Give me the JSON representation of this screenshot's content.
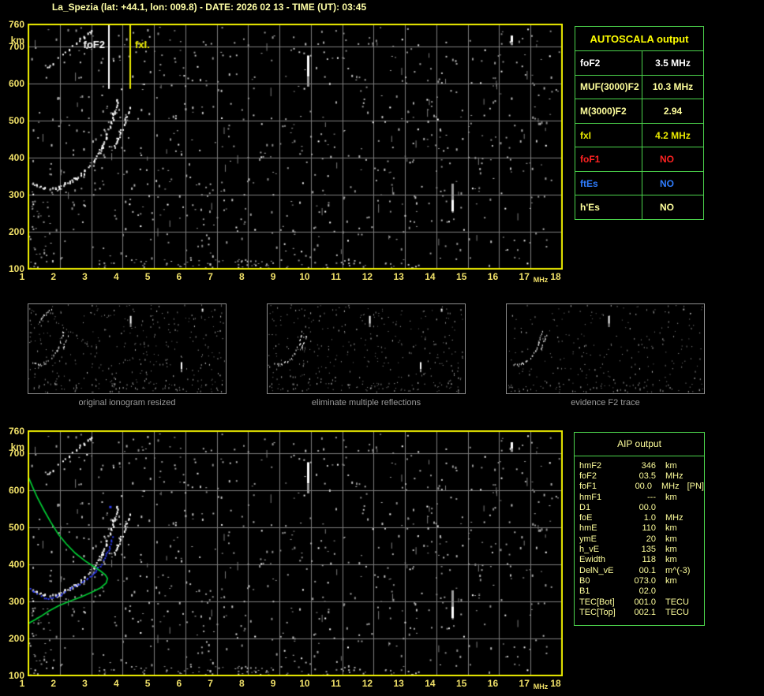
{
  "title": "La_Spezia (lat: +44.1, lon: 009.8) - DATE: 2026 02 13 - TIME (UT): 03:45",
  "colors": {
    "background": "#000000",
    "plot_border": "#eeee00",
    "axis_label": "#f0e068",
    "grid": "#7d7d7d",
    "table_border": "#4cd44c",
    "title_text": "#ffffa6",
    "caption_text": "#9a9a9a",
    "trace_white": "#ffffff",
    "profile_green": "#00cc33",
    "scaled_trace_blue": "#2e3cf2",
    "fof2_marker": "#ffffff",
    "fxi_marker": "#eeee00"
  },
  "autoscala_table": {
    "header": "AUTOSCALA output",
    "rows": [
      {
        "label": "foF2",
        "value": "3.5 MHz",
        "color": "#ffffff"
      },
      {
        "label": "MUF(3000)F2",
        "value": "10.3 MHz",
        "color": "#ffff9c"
      },
      {
        "label": "M(3000)F2",
        "value": "2.94",
        "color": "#ffff9c"
      },
      {
        "label": "fxI",
        "value": "4.2 MHz",
        "color": "#e9e900"
      },
      {
        "label": "foF1",
        "value": "NO",
        "color": "#ff2222"
      },
      {
        "label": "ftEs",
        "value": "NO",
        "color": "#2f7dff"
      },
      {
        "label": "h'Es",
        "value": "NO",
        "color": "#ffff9c"
      }
    ]
  },
  "aip_table": {
    "header": "AIP output",
    "text_color": "#ffff9c",
    "rows": [
      {
        "label": "hmF2",
        "value": "346",
        "unit": "km"
      },
      {
        "label": "foF2",
        "value": "03.5",
        "unit": "MHz"
      },
      {
        "label": "foF1",
        "value": "00.0",
        "unit": "MHz",
        "extra": "[PN]"
      },
      {
        "label": "hmF1",
        "value": "---",
        "unit": "km"
      },
      {
        "label": "D1",
        "value": "00.0",
        "unit": ""
      },
      {
        "label": "foE",
        "value": "1.0",
        "unit": "MHz"
      },
      {
        "label": "hmE",
        "value": "110",
        "unit": "km"
      },
      {
        "label": "ymE",
        "value": "20",
        "unit": "km"
      },
      {
        "label": "h_vE",
        "value": "135",
        "unit": "km"
      },
      {
        "label": "Ewidth",
        "value": "118",
        "unit": "km"
      },
      {
        "label": "DelN_vE",
        "value": "00.1",
        "unit": "m^(-3)"
      },
      {
        "label": "B0",
        "value": "073.0",
        "unit": "km"
      },
      {
        "label": "B1",
        "value": "02.0",
        "unit": ""
      },
      {
        "label": "TEC[Bot]",
        "value": "001.0",
        "unit": "TECU"
      },
      {
        "label": "TEC[Top]",
        "value": "002.1",
        "unit": "TECU"
      }
    ]
  },
  "thumbnails": [
    {
      "caption": "original ionogram resized",
      "seed": 11,
      "noise_count": 340,
      "series": [
        0,
        1,
        2
      ],
      "streaks": [
        0,
        1,
        2
      ]
    },
    {
      "caption": "eliminate multiple reflections",
      "seed": 23,
      "noise_count": 310,
      "series": [
        0,
        1
      ],
      "streaks": [
        0,
        1,
        2
      ]
    },
    {
      "caption": "evidence F2 trace",
      "seed": 37,
      "noise_count": 230,
      "series": [
        0,
        1
      ],
      "streaks": [
        0
      ]
    }
  ],
  "chart_data": [
    {
      "id": "top_ionogram",
      "type": "scatter",
      "title": "",
      "xlabel": "MHz",
      "ylabel": "km",
      "xlim": [
        1,
        18
      ],
      "ylim": [
        100,
        760
      ],
      "xticks": [
        1,
        2,
        3,
        4,
        5,
        6,
        7,
        8,
        9,
        10,
        11,
        12,
        13,
        14,
        15,
        16,
        17,
        18
      ],
      "yticks": [
        760,
        700,
        600,
        500,
        400,
        300,
        200,
        100
      ],
      "grid": true,
      "series": [
        {
          "name": "F2 trace ordinary",
          "color": "#ffffff",
          "points": [
            [
              1.15,
              330
            ],
            [
              1.35,
              322
            ],
            [
              1.55,
              317
            ],
            [
              1.75,
              315
            ],
            [
              1.95,
              318
            ],
            [
              2.15,
              326
            ],
            [
              2.35,
              334
            ],
            [
              2.55,
              344
            ],
            [
              2.75,
              357
            ],
            [
              2.95,
              372
            ],
            [
              3.1,
              390
            ],
            [
              3.25,
              410
            ],
            [
              3.38,
              432
            ],
            [
              3.5,
              458
            ],
            [
              3.6,
              482
            ],
            [
              3.7,
              508
            ],
            [
              3.78,
              532
            ],
            [
              3.85,
              556
            ]
          ]
        },
        {
          "name": "F2 trace extraordinary",
          "color": "#ffffff",
          "points": [
            [
              3.78,
              436
            ],
            [
              3.9,
              458
            ],
            [
              4.0,
              478
            ],
            [
              4.1,
              498
            ],
            [
              4.2,
              518
            ],
            [
              4.28,
              532
            ]
          ]
        },
        {
          "name": "second hop echo",
          "color": "#ffffff",
          "points": [
            [
              1.65,
              642
            ],
            [
              1.85,
              660
            ],
            [
              2.1,
              680
            ],
            [
              2.35,
              698
            ],
            [
              2.6,
              714
            ],
            [
              2.85,
              728
            ],
            [
              3.05,
              740
            ]
          ]
        }
      ],
      "rfi_streaks": [
        {
          "f": 9.9,
          "h": [
            592,
            676
          ],
          "bright_side": "high"
        },
        {
          "f": 14.5,
          "h": [
            255,
            330
          ],
          "bright_side": "low"
        },
        {
          "f": 16.4,
          "h": [
            704,
            730
          ],
          "bright_side": "high"
        }
      ],
      "markers": [
        {
          "label": "foF2",
          "freq_mhz": 3.5,
          "line_f": 3.56,
          "line_bottom_km": 586,
          "label_side": "left",
          "color": "#ffffff"
        },
        {
          "label": "fxI.",
          "freq_mhz": 4.2,
          "line_f": 4.25,
          "line_bottom_km": 586,
          "label_side": "right",
          "color": "#eeee00"
        }
      ],
      "noise": {
        "seed": 5,
        "count": 700,
        "bright": 55,
        "wisps": 48,
        "band": {
          "count": 95,
          "f": [
            3.2,
            13.6
          ],
          "h": [
            101,
            126
          ]
        },
        "cluster": {
          "count": 30,
          "f": [
            1.0,
            1.8
          ],
          "h": [
            100,
            340
          ]
        }
      }
    },
    {
      "id": "bottom_ionogram",
      "type": "scatter",
      "title": "",
      "xlabel": "MHz",
      "ylabel": "km",
      "xlim": [
        1,
        18
      ],
      "ylim": [
        100,
        760
      ],
      "xticks": [
        1,
        2,
        3,
        4,
        5,
        6,
        7,
        8,
        9,
        10,
        11,
        12,
        13,
        14,
        15,
        16,
        17,
        18
      ],
      "yticks": [
        760,
        700,
        600,
        500,
        400,
        300,
        200,
        100
      ],
      "grid": true,
      "series": [
        {
          "name": "F2 trace ordinary",
          "color": "#ffffff",
          "points": [
            [
              1.15,
              330
            ],
            [
              1.35,
              322
            ],
            [
              1.55,
              317
            ],
            [
              1.75,
              315
            ],
            [
              1.95,
              318
            ],
            [
              2.15,
              326
            ],
            [
              2.35,
              334
            ],
            [
              2.55,
              344
            ],
            [
              2.75,
              357
            ],
            [
              2.95,
              372
            ],
            [
              3.1,
              390
            ],
            [
              3.25,
              410
            ],
            [
              3.38,
              432
            ],
            [
              3.5,
              458
            ],
            [
              3.6,
              482
            ],
            [
              3.7,
              508
            ],
            [
              3.78,
              532
            ],
            [
              3.85,
              556
            ]
          ]
        },
        {
          "name": "F2 trace extraordinary",
          "color": "#ffffff",
          "points": [
            [
              3.78,
              436
            ],
            [
              3.9,
              458
            ],
            [
              4.0,
              478
            ],
            [
              4.1,
              498
            ],
            [
              4.2,
              518
            ],
            [
              4.28,
              532
            ]
          ]
        },
        {
          "name": "second hop echo",
          "color": "#ffffff",
          "points": [
            [
              1.65,
              642
            ],
            [
              1.85,
              660
            ],
            [
              2.1,
              680
            ],
            [
              2.35,
              698
            ],
            [
              2.6,
              714
            ],
            [
              2.85,
              728
            ],
            [
              3.05,
              740
            ]
          ]
        }
      ],
      "rfi_streaks": [
        {
          "f": 9.9,
          "h": [
            592,
            676
          ],
          "bright_side": "high"
        },
        {
          "f": 14.5,
          "h": [
            255,
            330
          ],
          "bright_side": "low"
        },
        {
          "f": 16.4,
          "h": [
            704,
            730
          ],
          "bright_side": "high"
        }
      ],
      "profile": {
        "name": "AIP electron density profile",
        "color": "#00cc33",
        "points": [
          [
            1.0,
            636
          ],
          [
            1.15,
            606
          ],
          [
            1.3,
            578
          ],
          [
            1.5,
            546
          ],
          [
            1.7,
            516
          ],
          [
            1.95,
            482
          ],
          [
            2.2,
            456
          ],
          [
            2.5,
            430
          ],
          [
            2.8,
            410
          ],
          [
            3.05,
            396
          ],
          [
            3.3,
            382
          ],
          [
            3.45,
            372
          ],
          [
            3.52,
            362
          ],
          [
            3.48,
            350
          ],
          [
            3.3,
            337
          ],
          [
            3.05,
            326
          ],
          [
            2.7,
            313
          ],
          [
            2.3,
            300
          ],
          [
            1.95,
            288
          ],
          [
            1.65,
            274
          ],
          [
            1.4,
            260
          ],
          [
            1.2,
            250
          ],
          [
            1.05,
            243
          ],
          [
            1.0,
            240
          ]
        ]
      },
      "scaled_trace": {
        "name": "autoscaled F2 trace points",
        "color": "#2e3cf2",
        "points": [
          [
            1.08,
            334
          ],
          [
            1.2,
            324
          ],
          [
            1.35,
            315
          ],
          [
            1.5,
            310
          ],
          [
            1.65,
            308
          ],
          [
            1.8,
            310
          ],
          [
            1.95,
            315
          ],
          [
            2.1,
            321
          ],
          [
            2.25,
            328
          ],
          [
            2.4,
            335
          ],
          [
            2.55,
            343
          ],
          [
            2.7,
            351
          ],
          [
            2.85,
            360
          ],
          [
            3.0,
            370
          ],
          [
            3.15,
            381
          ],
          [
            3.28,
            394
          ],
          [
            3.4,
            410
          ],
          [
            3.5,
            427
          ],
          [
            3.58,
            444
          ],
          [
            3.64,
            460
          ],
          [
            3.68,
            474
          ]
        ],
        "extra_points": [
          [
            3.6,
            556
          ]
        ]
      },
      "noise": {
        "seed": 5,
        "count": 700,
        "bright": 55,
        "wisps": 48,
        "band": {
          "count": 95,
          "f": [
            3.2,
            13.6
          ],
          "h": [
            101,
            126
          ]
        },
        "cluster": {
          "count": 30,
          "f": [
            1.0,
            1.8
          ],
          "h": [
            100,
            340
          ]
        }
      }
    }
  ]
}
